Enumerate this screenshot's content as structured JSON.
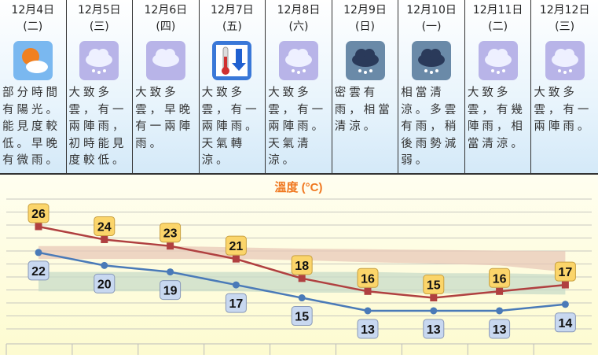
{
  "days": [
    {
      "date": "12月4日",
      "weekday": "(二)",
      "icon": "sun-cloud-icon",
      "desc": "部分時間有陽光。能見度較低。早晚有微雨。"
    },
    {
      "date": "12月5日",
      "weekday": "(三)",
      "icon": "cloud-drizzle-icon",
      "desc": "大致多雲，有一兩陣雨，初時能見度較低。"
    },
    {
      "date": "12月6日",
      "weekday": "(四)",
      "icon": "cloud-icon",
      "desc": "大致多雲，早晚有一兩陣雨。"
    },
    {
      "date": "12月7日",
      "weekday": "(五)",
      "icon": "thermometer-cooler-icon",
      "desc": "大致多雲，有一兩陣雨。天氣轉涼。"
    },
    {
      "date": "12月8日",
      "weekday": "(六)",
      "icon": "cloud-drizzle-icon",
      "desc": "大致多雲，有一兩陣雨。天氣清涼。"
    },
    {
      "date": "12月9日",
      "weekday": "(日)",
      "icon": "dark-cloud-rain-icon",
      "desc": "密雲有雨，相當清涼。"
    },
    {
      "date": "12月10日",
      "weekday": "(一)",
      "icon": "dark-cloud-rain-icon",
      "desc": "相當清涼。多雲有雨，稍後雨勢減弱。"
    },
    {
      "date": "12月11日",
      "weekday": "(二)",
      "icon": "cloud-drizzle-icon",
      "desc": "大致多雲，有幾陣雨，相當清涼。"
    },
    {
      "date": "12月12日",
      "weekday": "(三)",
      "icon": "cloud-drizzle-icon",
      "desc": "大致多雲，有一兩陣雨。"
    }
  ],
  "chart_data": {
    "type": "line",
    "title": "溫度 (°C)",
    "categories": [
      "12月4日",
      "12月5日",
      "12月6日",
      "12月7日",
      "12月8日",
      "12月9日",
      "12月10日",
      "12月11日",
      "12月12日"
    ],
    "series": [
      {
        "role": "max",
        "color": "#b04040",
        "values": [
          26,
          24,
          23,
          21,
          18,
          16,
          15,
          16,
          17
        ]
      },
      {
        "role": "min",
        "color": "#4a7ab8",
        "values": [
          22,
          20,
          19,
          17,
          15,
          13,
          13,
          13,
          14
        ]
      }
    ],
    "bands": [
      {
        "role": "normal-max",
        "color": "#e8c8b8",
        "lower": [
          21,
          21,
          21,
          21,
          20.8,
          20.5,
          20.3,
          20,
          19
        ],
        "upper": [
          23,
          23,
          23,
          22.8,
          22.6,
          22.5,
          22.4,
          22.3,
          22.2
        ]
      },
      {
        "role": "normal-min",
        "color": "#c8dcc8",
        "lower": [
          16,
          16,
          16,
          16,
          15.8,
          15.8,
          15.7,
          15.6,
          15.5
        ],
        "upper": [
          19,
          19,
          19,
          19,
          19,
          19,
          18.8,
          18.8,
          18.6
        ]
      }
    ],
    "ylim": [
      10,
      30
    ],
    "grid": true
  }
}
